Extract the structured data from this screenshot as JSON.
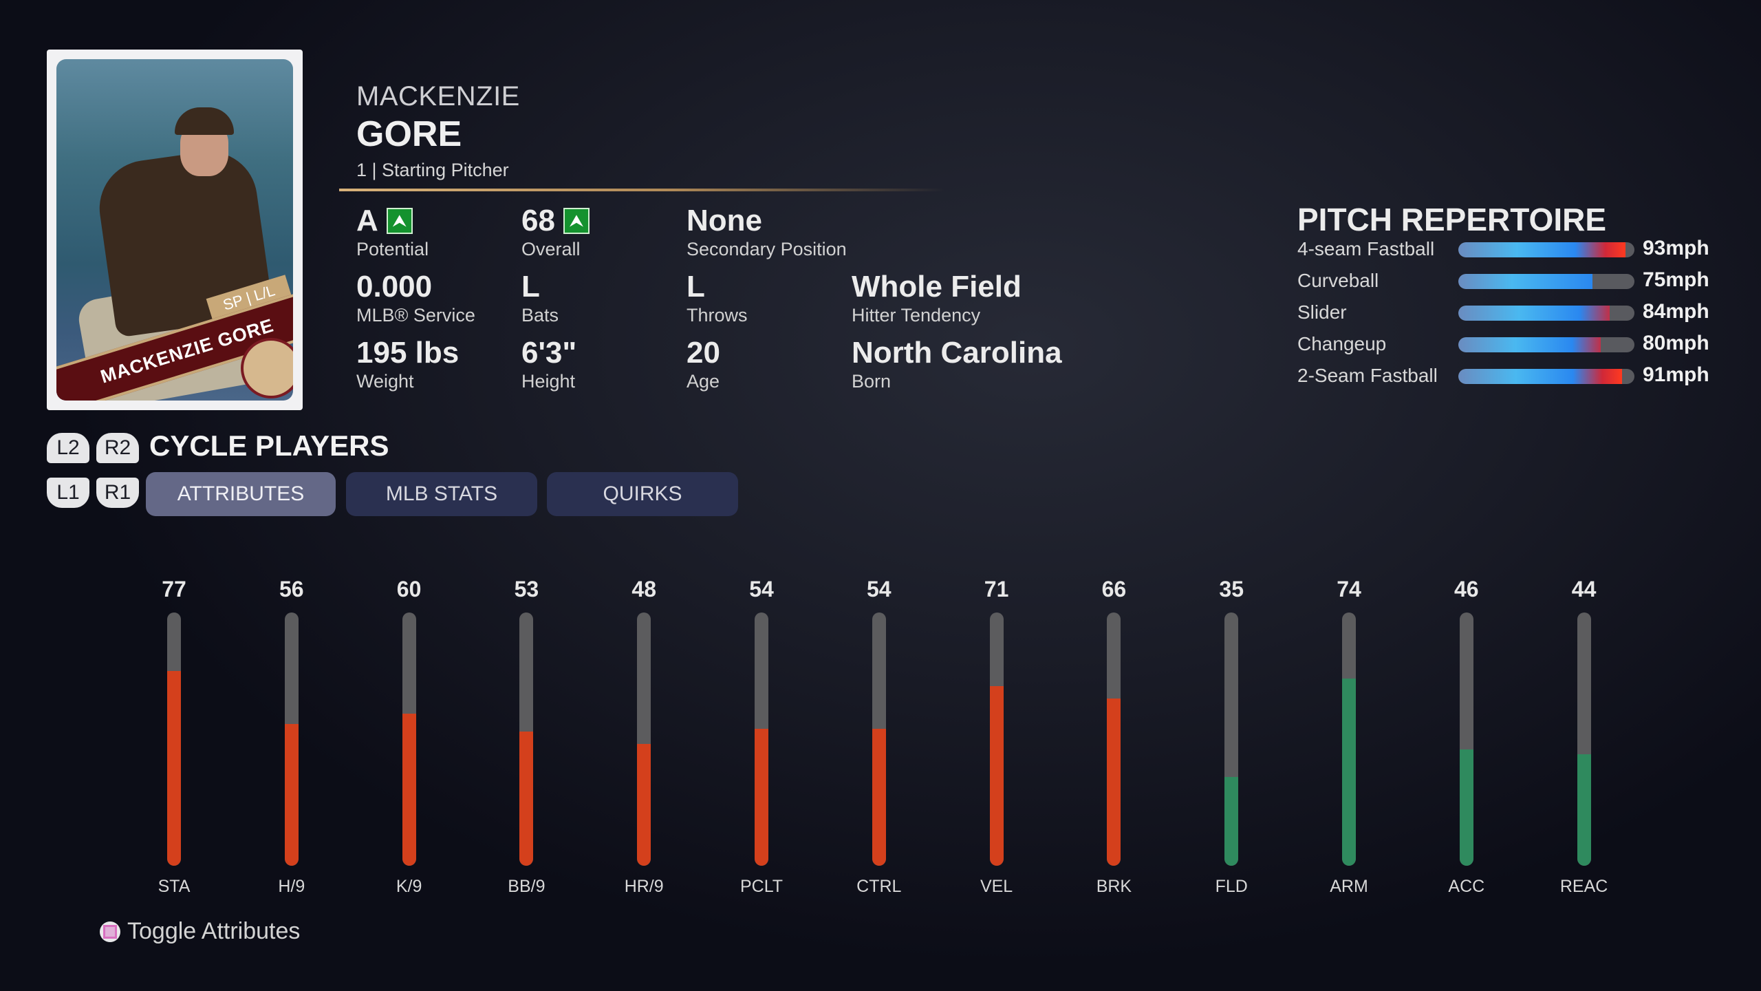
{
  "card": {
    "name": "MACKENZIE GORE",
    "position_badge": "SP | L/L"
  },
  "player": {
    "first_name": "MACKENZIE",
    "last_name": "GORE",
    "subtitle": "1 | Starting Pitcher"
  },
  "stats": [
    {
      "value": "A",
      "label": "Potential",
      "upgrade": true
    },
    {
      "value": "68",
      "label": "Overall",
      "upgrade": true
    },
    {
      "value": "None",
      "label": "Secondary Position"
    },
    {
      "value": "0.000",
      "label": "MLB® Service"
    },
    {
      "value": "L",
      "label": "Bats"
    },
    {
      "value": "L",
      "label": "Throws"
    },
    {
      "value": "Whole Field",
      "label": "Hitter Tendency"
    },
    {
      "value": "195 lbs",
      "label": "Weight"
    },
    {
      "value": "6'3\"",
      "label": "Height"
    },
    {
      "value": "20",
      "label": "Age"
    },
    {
      "value": "North Carolina",
      "label": "Born"
    }
  ],
  "pitch_repertoire": {
    "title": "PITCH REPERTOIRE",
    "pitches": [
      {
        "name": "4-seam Fastball",
        "speed": "93mph",
        "fill": 0.95
      },
      {
        "name": "Curveball",
        "speed": "75mph",
        "fill": 0.76
      },
      {
        "name": "Slider",
        "speed": "84mph",
        "fill": 0.86
      },
      {
        "name": "Changeup",
        "speed": "80mph",
        "fill": 0.81
      },
      {
        "name": "2-Seam Fastball",
        "speed": "91mph",
        "fill": 0.93
      }
    ]
  },
  "cycle": {
    "l2": "L2",
    "r2": "R2",
    "title": "CYCLE PLAYERS",
    "l1": "L1",
    "r1": "R1"
  },
  "tabs": [
    {
      "label": "ATTRIBUTES",
      "active": true
    },
    {
      "label": "MLB STATS",
      "active": false
    },
    {
      "label": "QUIRKS",
      "active": false
    }
  ],
  "colors": {
    "pitching": "#d4401c",
    "fielding": "#2f8a5e",
    "track": "#5c5c5e"
  },
  "attributes": [
    {
      "label": "STA",
      "value": 77,
      "group": "pitching"
    },
    {
      "label": "H/9",
      "value": 56,
      "group": "pitching"
    },
    {
      "label": "K/9",
      "value": 60,
      "group": "pitching"
    },
    {
      "label": "BB/9",
      "value": 53,
      "group": "pitching"
    },
    {
      "label": "HR/9",
      "value": 48,
      "group": "pitching"
    },
    {
      "label": "PCLT",
      "value": 54,
      "group": "pitching"
    },
    {
      "label": "CTRL",
      "value": 54,
      "group": "pitching"
    },
    {
      "label": "VEL",
      "value": 71,
      "group": "pitching"
    },
    {
      "label": "BRK",
      "value": 66,
      "group": "pitching"
    },
    {
      "label": "FLD",
      "value": 35,
      "group": "fielding"
    },
    {
      "label": "ARM",
      "value": 74,
      "group": "fielding"
    },
    {
      "label": "ACC",
      "value": 46,
      "group": "fielding"
    },
    {
      "label": "REAC",
      "value": 44,
      "group": "fielding"
    }
  ],
  "footer": {
    "toggle_label": "Toggle Attributes",
    "toggle_icon": "square-button-icon"
  }
}
